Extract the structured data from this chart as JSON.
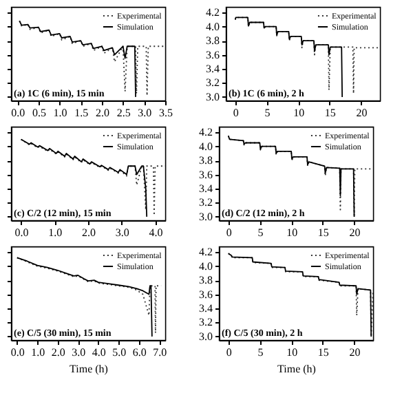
{
  "chart_data": [
    {
      "type": "line",
      "annotations": [
        "(a) 1C (6 min), 15 min"
      ],
      "legend": "top right",
      "marker": "none",
      "tick_labels": "x",
      "grid": false,
      "xlim": [
        -0.15,
        3.5
      ],
      "xticks": [
        {
          "value": 0,
          "label": "0.0"
        },
        0.5,
        {
          "value": 1,
          "label": "1.0"
        },
        1.5,
        {
          "value": 2,
          "label": "2.0"
        },
        2.5,
        {
          "value": 3,
          "label": "3.0"
        },
        3.5
      ],
      "ylim": [
        2.95,
        4.28
      ],
      "yticks": [
        {
          "value": 3.0,
          "label": null
        },
        {
          "value": 3.2,
          "label": null
        },
        {
          "value": 3.4,
          "label": null
        },
        {
          "value": 3.6,
          "label": null
        },
        {
          "value": 3.8,
          "label": null
        },
        {
          "value": 4.0,
          "label": null
        },
        {
          "value": 4.2,
          "label": null
        }
      ],
      "series": [
        {
          "name": "Experimental",
          "color": "#333333",
          "line_style": "dotted",
          "x": [
            0.05,
            0.1,
            0.25,
            0.3,
            0.5,
            0.55,
            0.75,
            0.8,
            1.0,
            1.05,
            1.25,
            1.3,
            1.5,
            1.55,
            1.75,
            1.8,
            2.0,
            2.05,
            2.25,
            2.3,
            2.5,
            2.55,
            2.6,
            2.8,
            2.82,
            2.85,
            3.05,
            3.07,
            3.1,
            3.5
          ],
          "values": [
            4.08,
            4.01,
            4.03,
            3.96,
            3.99,
            3.91,
            3.95,
            3.86,
            3.9,
            3.81,
            3.86,
            3.76,
            3.8,
            3.72,
            3.76,
            3.66,
            3.72,
            3.62,
            3.7,
            3.5,
            3.72,
            3.08,
            3.72,
            3.72,
            3.05,
            3.72,
            3.72,
            3.02,
            3.72,
            3.72
          ]
        },
        {
          "name": "Simulation",
          "color": "#000000",
          "line_style": "solid",
          "x": [
            0.05,
            0.1,
            0.25,
            0.3,
            0.5,
            0.55,
            0.75,
            0.8,
            1.0,
            1.05,
            1.25,
            1.3,
            1.5,
            1.55,
            1.75,
            1.8,
            2.0,
            2.05,
            2.25,
            2.3,
            2.5,
            2.55,
            2.6,
            2.78,
            2.8
          ],
          "values": [
            4.08,
            4.02,
            4.03,
            3.98,
            3.99,
            3.93,
            3.95,
            3.88,
            3.9,
            3.84,
            3.86,
            3.78,
            3.8,
            3.74,
            3.76,
            3.69,
            3.72,
            3.66,
            3.7,
            3.6,
            3.72,
            3.55,
            3.72,
            3.72,
            3.0
          ]
        }
      ]
    },
    {
      "type": "line",
      "annotations": [
        "(b) 1C (6 min), 2 h"
      ],
      "legend": "top right",
      "marker": "none",
      "grid": false,
      "xlim": [
        -1.5,
        23
      ],
      "xticks": [
        0,
        5,
        10,
        15,
        20
      ],
      "ylim": [
        2.95,
        4.28
      ],
      "yticks": [
        {
          "value": 3.0,
          "label": "3.0"
        },
        3.2,
        3.4,
        3.6,
        3.8,
        {
          "value": 4.0,
          "label": "4.0"
        },
        4.2
      ],
      "series": [
        {
          "name": "Experimental",
          "color": "#333333",
          "line_style": "dotted",
          "x": [
            0,
            0.1,
            2,
            2.1,
            2.3,
            4.5,
            4.6,
            4.8,
            6.5,
            6.6,
            6.8,
            8.5,
            8.6,
            8.8,
            10.5,
            10.6,
            10.8,
            12.5,
            12.6,
            12.8,
            14.8,
            14.9,
            15.1,
            18.7,
            18.8,
            18.9,
            23
          ],
          "values": [
            4.1,
            4.13,
            4.13,
            4.0,
            4.06,
            4.06,
            3.97,
            4.0,
            4.0,
            3.87,
            3.93,
            3.93,
            3.8,
            3.86,
            3.86,
            3.7,
            3.8,
            3.8,
            3.6,
            3.74,
            3.74,
            3.1,
            3.71,
            3.71,
            3.05,
            3.7,
            3.7
          ]
        },
        {
          "name": "Simulation",
          "color": "#000000",
          "line_style": "solid",
          "x": [
            0,
            0.1,
            2,
            2.1,
            2.3,
            4.5,
            4.6,
            4.8,
            6.5,
            6.6,
            6.8,
            8.5,
            8.6,
            8.8,
            10.5,
            10.6,
            10.8,
            12.5,
            12.6,
            12.8,
            14.8,
            14.9,
            15.1,
            16.9,
            17
          ],
          "values": [
            4.1,
            4.13,
            4.13,
            4.01,
            4.06,
            4.06,
            3.98,
            4.0,
            4.0,
            3.88,
            3.93,
            3.93,
            3.82,
            3.86,
            3.86,
            3.74,
            3.8,
            3.8,
            3.65,
            3.74,
            3.74,
            3.6,
            3.71,
            3.71,
            3.0
          ]
        }
      ]
    },
    {
      "type": "line",
      "annotations": [
        "(c) C/2 (12 min), 15 min"
      ],
      "legend": "top right",
      "marker": "none",
      "tick_labels": "x",
      "grid": false,
      "xlim": [
        -0.3,
        4.3
      ],
      "xticks": [
        {
          "value": 0,
          "label": "0.0"
        },
        {
          "value": 1,
          "label": "1.0"
        },
        {
          "value": 2,
          "label": "2.0"
        },
        {
          "value": 3,
          "label": "3.0"
        },
        {
          "value": 4,
          "label": "4.0"
        }
      ],
      "ylim": [
        2.95,
        4.28
      ],
      "yticks": [
        {
          "value": 3.0,
          "label": null
        },
        {
          "value": 3.2,
          "label": null
        },
        {
          "value": 3.4,
          "label": null
        },
        {
          "value": 3.6,
          "label": null
        },
        {
          "value": 3.8,
          "label": null
        },
        {
          "value": 4.0,
          "label": null
        },
        {
          "value": 4.2,
          "label": null
        }
      ],
      "series": [
        {
          "name": "Experimental",
          "color": "#333333",
          "line_style": "dotted",
          "x": [
            0,
            0.25,
            0.3,
            0.5,
            0.55,
            0.8,
            0.85,
            1.05,
            1.1,
            1.3,
            1.35,
            1.55,
            1.6,
            1.8,
            1.85,
            2.05,
            2.1,
            2.35,
            2.4,
            2.6,
            2.65,
            2.9,
            2.95,
            3.15,
            3.2,
            3.4,
            3.45,
            3.6,
            3.65,
            3.72,
            3.75,
            3.95,
            3.97,
            4.0,
            4.3
          ],
          "values": [
            4.1,
            4.02,
            4.04,
            3.98,
            4.0,
            3.93,
            3.96,
            3.89,
            3.92,
            3.85,
            3.89,
            3.81,
            3.85,
            3.77,
            3.81,
            3.74,
            3.77,
            3.7,
            3.72,
            3.66,
            3.69,
            3.62,
            3.66,
            3.58,
            3.72,
            3.72,
            3.45,
            3.72,
            3.72,
            3.1,
            3.72,
            3.72,
            3.02,
            3.72,
            3.72
          ]
        },
        {
          "name": "Simulation",
          "color": "#000000",
          "line_style": "solid",
          "x": [
            0,
            0.25,
            0.3,
            0.5,
            0.55,
            0.8,
            0.85,
            1.05,
            1.1,
            1.3,
            1.35,
            1.55,
            1.6,
            1.8,
            1.85,
            2.05,
            2.1,
            2.35,
            2.4,
            2.6,
            2.65,
            2.9,
            2.95,
            3.15,
            3.2,
            3.4,
            3.45,
            3.6,
            3.65,
            3.72,
            3.75
          ],
          "values": [
            4.1,
            4.03,
            4.05,
            3.99,
            4.01,
            3.94,
            3.97,
            3.9,
            3.93,
            3.86,
            3.9,
            3.82,
            3.86,
            3.78,
            3.82,
            3.75,
            3.78,
            3.71,
            3.73,
            3.67,
            3.7,
            3.63,
            3.67,
            3.6,
            3.72,
            3.72,
            3.6,
            3.72,
            3.72,
            3.4,
            3.0
          ]
        }
      ]
    },
    {
      "type": "line",
      "annotations": [
        "(d) C/2 (12 min), 2 h"
      ],
      "legend": "top right",
      "marker": "none",
      "grid": false,
      "xlim": [
        -1.5,
        23
      ],
      "xticks": [
        0,
        5,
        10,
        15,
        20
      ],
      "ylim": [
        2.95,
        4.28
      ],
      "yticks": [
        {
          "value": 3.0,
          "label": "3.0"
        },
        3.2,
        3.4,
        3.6,
        3.8,
        {
          "value": 4.0,
          "label": "4.0"
        },
        4.2
      ],
      "series": [
        {
          "name": "Experimental",
          "color": "#333333",
          "line_style": "dotted",
          "x": [
            0,
            0.2,
            2.4,
            2.5,
            2.7,
            5,
            5.1,
            5.3,
            7.5,
            7.6,
            7.8,
            10,
            10.1,
            10.3,
            12.5,
            12.6,
            12.8,
            15.3,
            15.4,
            15.6,
            17.7,
            17.8,
            17.9,
            19.9,
            20,
            20.1,
            23
          ],
          "values": [
            4.15,
            4.1,
            4.08,
            4.02,
            4.05,
            4.05,
            3.95,
            4.0,
            4.0,
            3.88,
            3.93,
            3.93,
            3.8,
            3.85,
            3.85,
            3.72,
            3.78,
            3.72,
            3.58,
            3.7,
            3.69,
            3.1,
            3.68,
            3.68,
            3.02,
            3.68,
            3.68
          ]
        },
        {
          "name": "Simulation",
          "color": "#000000",
          "line_style": "solid",
          "x": [
            0,
            0.2,
            2.4,
            2.5,
            2.7,
            5,
            5.1,
            5.3,
            7.5,
            7.6,
            7.8,
            10,
            10.1,
            10.3,
            12.5,
            12.6,
            12.8,
            15.3,
            15.4,
            15.6,
            17.7,
            17.8,
            17.9,
            19.9,
            20
          ],
          "values": [
            4.15,
            4.1,
            4.08,
            4.03,
            4.05,
            4.05,
            3.96,
            4.0,
            4.0,
            3.9,
            3.93,
            3.93,
            3.82,
            3.85,
            3.85,
            3.74,
            3.78,
            3.72,
            3.62,
            3.7,
            3.69,
            3.3,
            3.68,
            3.68,
            3.0
          ]
        }
      ]
    },
    {
      "type": "line",
      "xlabel": "Time (h)",
      "annotations": [
        "(e) C/5 (30 min), 15 min"
      ],
      "legend": "top right",
      "marker": "none",
      "tick_labels": "x",
      "grid": false,
      "xlim": [
        -0.3,
        7.3
      ],
      "xticks": [
        {
          "value": 0,
          "label": "0.0"
        },
        {
          "value": 1,
          "label": "1.0"
        },
        {
          "value": 2,
          "label": "2.0"
        },
        {
          "value": 3,
          "label": "3.0"
        },
        {
          "value": 4,
          "label": "4.0"
        },
        {
          "value": 5,
          "label": "5.0"
        },
        {
          "value": 6,
          "label": "6.0"
        },
        {
          "value": 7,
          "label": "7.0"
        }
      ],
      "ylim": [
        2.95,
        4.28
      ],
      "yticks": [
        {
          "value": 3.0,
          "label": null
        },
        {
          "value": 3.2,
          "label": null
        },
        {
          "value": 3.4,
          "label": null
        },
        {
          "value": 3.6,
          "label": null
        },
        {
          "value": 3.8,
          "label": null
        },
        {
          "value": 4.0,
          "label": null
        },
        {
          "value": 4.2,
          "label": null
        }
      ],
      "series": [
        {
          "name": "Experimental",
          "color": "#333333",
          "line_style": "dotted",
          "x": [
            0,
            0.5,
            1.0,
            1.5,
            2.0,
            2.5,
            2.8,
            3.0,
            3.3,
            3.5,
            3.8,
            4.0,
            4.5,
            5.0,
            5.5,
            5.9,
            6.2,
            6.5,
            6.55,
            6.6,
            6.8,
            6.82,
            6.85,
            7.1
          ],
          "values": [
            4.12,
            4.06,
            4.0,
            3.97,
            3.93,
            3.88,
            3.85,
            3.86,
            3.81,
            3.78,
            3.79,
            3.76,
            3.74,
            3.72,
            3.7,
            3.66,
            3.6,
            3.3,
            3.72,
            3.72,
            3.72,
            3.05,
            3.72,
            3.72
          ]
        },
        {
          "name": "Simulation",
          "color": "#000000",
          "line_style": "solid",
          "x": [
            0,
            0.5,
            1.0,
            1.5,
            2.0,
            2.5,
            2.8,
            3.0,
            3.3,
            3.5,
            3.8,
            4.0,
            4.5,
            5.0,
            5.5,
            5.9,
            6.2,
            6.5,
            6.55,
            6.6,
            6.65
          ],
          "values": [
            4.12,
            4.07,
            4.01,
            3.98,
            3.94,
            3.89,
            3.86,
            3.87,
            3.82,
            3.79,
            3.8,
            3.77,
            3.75,
            3.73,
            3.71,
            3.68,
            3.65,
            3.6,
            3.72,
            3.72,
            3.0
          ]
        }
      ]
    },
    {
      "type": "line",
      "xlabel": "Time (h)",
      "annotations": [
        "(f) C/5 (30 min), 2 h"
      ],
      "legend": "top right",
      "marker": "none",
      "grid": false,
      "xlim": [
        -1.5,
        23
      ],
      "xticks": [
        0,
        5,
        10,
        15,
        20
      ],
      "ylim": [
        2.95,
        4.28
      ],
      "yticks": [
        {
          "value": 3.0,
          "label": "3.0"
        },
        3.2,
        3.4,
        3.6,
        3.8,
        {
          "value": 4.0,
          "label": "4.0"
        },
        4.2
      ],
      "series": [
        {
          "name": "Experimental",
          "color": "#333333",
          "line_style": "dotted",
          "x": [
            0,
            0.5,
            0.6,
            3.8,
            3.9,
            6.8,
            6.9,
            9.0,
            9.1,
            11.8,
            11.9,
            14.3,
            14.4,
            17.6,
            17.7,
            20.3,
            20.4,
            20.6,
            22.6,
            22.7,
            23
          ],
          "values": [
            4.18,
            4.15,
            4.12,
            4.12,
            4.05,
            4.04,
            3.98,
            3.98,
            3.92,
            3.92,
            3.85,
            3.85,
            3.8,
            3.77,
            3.72,
            3.72,
            3.3,
            3.68,
            3.66,
            3.0,
            3.66
          ]
        },
        {
          "name": "Simulation",
          "color": "#000000",
          "line_style": "solid",
          "x": [
            0,
            0.5,
            0.6,
            3.8,
            3.9,
            6.8,
            6.9,
            9.0,
            9.1,
            11.8,
            11.9,
            14.3,
            14.4,
            17.6,
            17.7,
            20.3,
            20.4,
            20.6,
            22.6,
            22.7
          ],
          "values": [
            4.18,
            4.15,
            4.13,
            4.12,
            4.06,
            4.04,
            3.99,
            3.98,
            3.93,
            3.92,
            3.86,
            3.85,
            3.81,
            3.77,
            3.73,
            3.72,
            3.6,
            3.68,
            3.66,
            3.0
          ]
        }
      ]
    }
  ]
}
